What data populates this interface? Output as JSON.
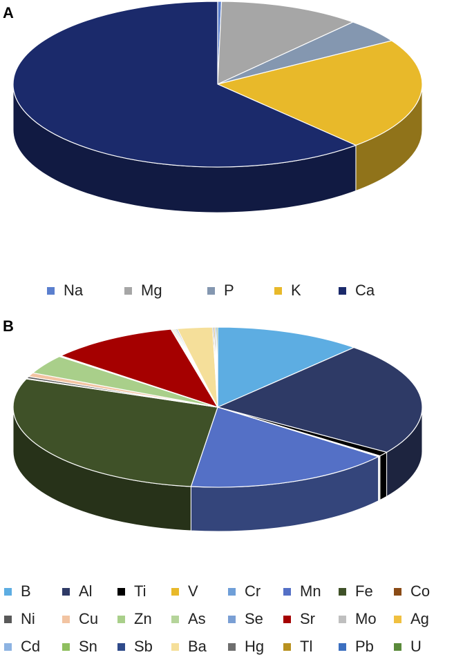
{
  "chart_data": [
    {
      "panel": "A",
      "type": "pie",
      "categories": [
        "Na",
        "Mg",
        "P",
        "K",
        "Ca"
      ],
      "values": [
        0.3,
        11.2,
        4.7,
        22.0,
        61.8
      ],
      "colors": [
        "#5b7fce",
        "#a6a6a6",
        "#8497b0",
        "#e8b92a",
        "#1b2a6b"
      ],
      "legend": "bottom",
      "style": "3d"
    },
    {
      "panel": "B",
      "type": "pie",
      "categories": [
        "B",
        "Al",
        "Ti",
        "V",
        "Cr",
        "Mn",
        "Fe",
        "Co",
        "Ni",
        "Cu",
        "Zn",
        "As",
        "Se",
        "Sr",
        "Mo",
        "Ag",
        "Cd",
        "Sn",
        "Sb",
        "Ba",
        "Hg",
        "Tl",
        "Pb",
        "U"
      ],
      "values": [
        11.7,
        23.1,
        0.9,
        0.1,
        0.1,
        16.6,
        28.9,
        0.1,
        0.4,
        0.8,
        3.9,
        0.1,
        0.1,
        10.3,
        0.1,
        0.1,
        0.1,
        0.1,
        0.1,
        2.8,
        0.1,
        0.1,
        0.1,
        0.1
      ],
      "colors": [
        "#5dade2",
        "#2e3a66",
        "#000000",
        "#e8b92a",
        "#6f9fd8",
        "#5470c6",
        "#3f5128",
        "#8a4b16",
        "#595959",
        "#f2c4a2",
        "#a9cf8a",
        "#b5d49a",
        "#7a9fd4",
        "#a50000",
        "#bfbfbf",
        "#f0c040",
        "#8db3e2",
        "#8fbf5f",
        "#2f4a8a",
        "#f5df9a",
        "#6e6e6e",
        "#b8911f",
        "#3c6fc0",
        "#5a8a3a"
      ],
      "legend": "bottom",
      "style": "3d"
    }
  ],
  "panels": {
    "a_label": "A",
    "b_label": "B"
  }
}
